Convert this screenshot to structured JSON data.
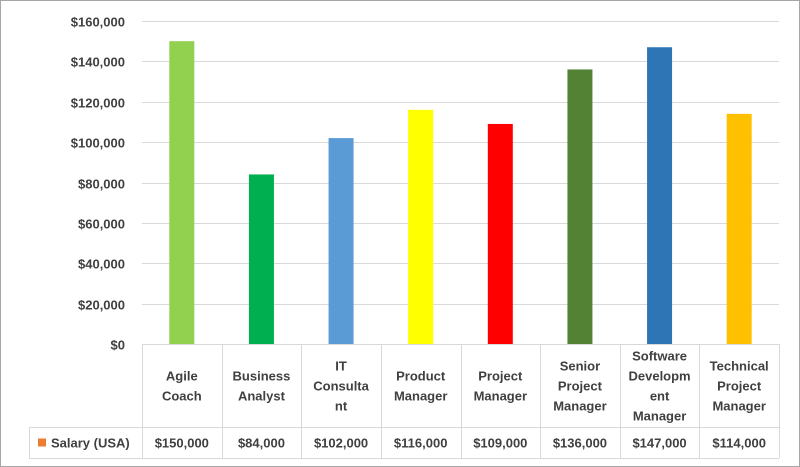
{
  "chart_data": {
    "type": "bar",
    "title": "",
    "xlabel": "",
    "ylabel": "",
    "ylim": [
      0,
      160000
    ],
    "y_ticks": [
      "$0",
      "$20,000",
      "$40,000",
      "$60,000",
      "$80,000",
      "$100,000",
      "$120,000",
      "$140,000",
      "$160,000"
    ],
    "grid": true,
    "legend": "data-table",
    "categories": [
      [
        "Agile",
        "Coach"
      ],
      [
        "Business",
        "Analyst"
      ],
      [
        "IT",
        "Consultant"
      ],
      [
        "Product",
        "Manager"
      ],
      [
        "Project",
        "Manager"
      ],
      [
        "Senior",
        "Project",
        "Manager"
      ],
      [
        "Software",
        "Development",
        "Manager"
      ],
      [
        "Technical",
        "Project",
        "Manager"
      ]
    ],
    "category_lines": [
      [
        "Agile",
        "Coach"
      ],
      [
        "Business",
        "Analyst"
      ],
      [
        "IT",
        "Consulta",
        "nt"
      ],
      [
        "Product",
        "Manager"
      ],
      [
        "Project",
        "Manager"
      ],
      [
        "Senior",
        "Project",
        "Manager"
      ],
      [
        "Software",
        "Developm",
        "ent",
        "Manager"
      ],
      [
        "Technical",
        "Project",
        "Manager"
      ]
    ],
    "series": [
      {
        "name": "Salary (USA)",
        "values": [
          150000,
          84000,
          102000,
          116000,
          109000,
          136000,
          147000,
          114000
        ],
        "value_labels": [
          "$150,000",
          "$84,000",
          "$102,000",
          "$116,000",
          "$109,000",
          "$136,000",
          "$147,000",
          "$114,000"
        ],
        "colors": [
          "#92D050",
          "#00B050",
          "#5B9BD5",
          "#FFFF00",
          "#FF0000",
          "#548235",
          "#2E75B6",
          "#FFC000"
        ],
        "legend_color": "#ED7D31"
      }
    ]
  },
  "colors": {
    "grid": "#d9d9d9",
    "border": "#a6a6a6",
    "text": "#404040"
  }
}
